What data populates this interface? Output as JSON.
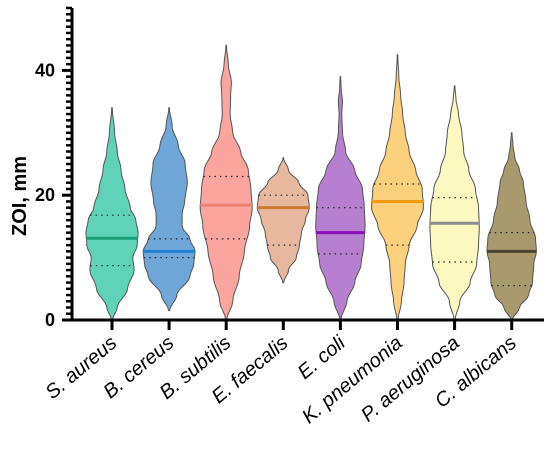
{
  "chart_data": {
    "type": "violin",
    "ylabel": "ZOI, mm",
    "ylim": [
      0,
      50
    ],
    "yticks": [
      0,
      20,
      40
    ],
    "minor_tick_step": 1,
    "categories": [
      "S. aureus",
      "B. cereus",
      "B. subtilis",
      "E. faecalis",
      "E. coli",
      "K. pneumonia",
      "P. aeruginosa",
      "C. albicans"
    ],
    "series": [
      {
        "color": "#5fd3b8",
        "median_color": "#1a9e75",
        "min": 0,
        "max": 34,
        "q1": 8.7,
        "median": 13.1,
        "q3": 16.8,
        "density": [
          [
            0,
            0.02
          ],
          [
            2,
            0.2
          ],
          [
            5,
            0.6
          ],
          [
            8,
            0.85
          ],
          [
            10,
            0.8
          ],
          [
            12,
            0.97
          ],
          [
            14,
            1.0
          ],
          [
            16,
            0.92
          ],
          [
            18,
            0.7
          ],
          [
            21,
            0.5
          ],
          [
            24,
            0.35
          ],
          [
            27,
            0.2
          ],
          [
            30,
            0.1
          ],
          [
            34,
            0.01
          ]
        ]
      },
      {
        "color": "#6fa7d8",
        "median_color": "#1f7fd0",
        "min": 1.5,
        "max": 34,
        "q1": 10.0,
        "median": 11.0,
        "q3": 13.0,
        "density": [
          [
            1.5,
            0.02
          ],
          [
            4,
            0.3
          ],
          [
            7,
            0.8
          ],
          [
            9,
            0.95
          ],
          [
            11,
            1.0
          ],
          [
            13,
            0.8
          ],
          [
            15,
            0.5
          ],
          [
            17,
            0.5
          ],
          [
            19,
            0.6
          ],
          [
            22,
            0.7
          ],
          [
            25,
            0.62
          ],
          [
            28,
            0.35
          ],
          [
            31,
            0.12
          ],
          [
            34,
            0.01
          ]
        ]
      },
      {
        "color": "#fca59e",
        "median_color": "#f08070",
        "min": 0,
        "max": 44,
        "q1": 13.0,
        "median": 18.4,
        "q3": 23.0,
        "density": [
          [
            0,
            0.02
          ],
          [
            3,
            0.25
          ],
          [
            7,
            0.5
          ],
          [
            11,
            0.7
          ],
          [
            15,
            0.9
          ],
          [
            18,
            1.0
          ],
          [
            21,
            0.95
          ],
          [
            24,
            0.85
          ],
          [
            27,
            0.55
          ],
          [
            30,
            0.25
          ],
          [
            33,
            0.15
          ],
          [
            36,
            0.17
          ],
          [
            38,
            0.2
          ],
          [
            41,
            0.08
          ],
          [
            44,
            0.01
          ]
        ]
      },
      {
        "color": "#e8b89e",
        "median_color": "#c97a30",
        "min": 6,
        "max": 26,
        "q1": 12.0,
        "median": 18.0,
        "q3": 20.0,
        "density": [
          [
            6,
            0.02
          ],
          [
            8,
            0.2
          ],
          [
            10,
            0.5
          ],
          [
            12,
            0.62
          ],
          [
            14,
            0.7
          ],
          [
            16,
            0.85
          ],
          [
            18,
            1.0
          ],
          [
            20,
            0.95
          ],
          [
            22,
            0.6
          ],
          [
            24,
            0.2
          ],
          [
            26,
            0.01
          ]
        ]
      },
      {
        "color": "#b67fd0",
        "median_color": "#8b10b8",
        "min": 0,
        "max": 39,
        "q1": 10.6,
        "median": 14.0,
        "q3": 18.0,
        "density": [
          [
            0,
            0.02
          ],
          [
            3,
            0.25
          ],
          [
            6,
            0.55
          ],
          [
            9,
            0.8
          ],
          [
            12,
            0.9
          ],
          [
            15,
            0.95
          ],
          [
            18,
            0.92
          ],
          [
            21,
            0.85
          ],
          [
            24,
            0.55
          ],
          [
            27,
            0.2
          ],
          [
            30,
            0.08
          ],
          [
            33,
            0.05
          ],
          [
            35,
            0.08
          ],
          [
            37,
            0.03
          ],
          [
            39,
            0.01
          ]
        ]
      },
      {
        "color": "#fdd07c",
        "median_color": "#f39a10",
        "min": 0,
        "max": 42.5,
        "q1": 12.0,
        "median": 19.0,
        "q3": 21.8,
        "density": [
          [
            0,
            0.02
          ],
          [
            3,
            0.15
          ],
          [
            6,
            0.25
          ],
          [
            9,
            0.3
          ],
          [
            12,
            0.45
          ],
          [
            15,
            0.75
          ],
          [
            18,
            1.0
          ],
          [
            21,
            0.95
          ],
          [
            24,
            0.7
          ],
          [
            27,
            0.45
          ],
          [
            30,
            0.3
          ],
          [
            33,
            0.2
          ],
          [
            36,
            0.12
          ],
          [
            39,
            0.05
          ],
          [
            42.5,
            0.01
          ]
        ]
      },
      {
        "color": "#fbf8c0",
        "median_color": "#8c8c8c",
        "min": 0,
        "max": 37.5,
        "q1": 9.3,
        "median": 15.5,
        "q3": 19.6,
        "density": [
          [
            0,
            0.02
          ],
          [
            3,
            0.2
          ],
          [
            6,
            0.6
          ],
          [
            9,
            0.85
          ],
          [
            12,
            0.92
          ],
          [
            15,
            0.95
          ],
          [
            18,
            0.92
          ],
          [
            21,
            0.8
          ],
          [
            24,
            0.55
          ],
          [
            27,
            0.35
          ],
          [
            30,
            0.28
          ],
          [
            33,
            0.15
          ],
          [
            35.5,
            0.05
          ],
          [
            37.5,
            0.01
          ]
        ]
      },
      {
        "color": "#a89a6c",
        "median_color": "#4d4530",
        "min": 0,
        "max": 30,
        "q1": 5.5,
        "median": 11.0,
        "q3": 14.0,
        "density": [
          [
            0,
            0.02
          ],
          [
            2,
            0.3
          ],
          [
            4,
            0.65
          ],
          [
            6,
            0.8
          ],
          [
            9,
            0.85
          ],
          [
            11,
            0.95
          ],
          [
            13,
            0.92
          ],
          [
            16,
            0.7
          ],
          [
            19,
            0.55
          ],
          [
            22,
            0.45
          ],
          [
            24,
            0.3
          ],
          [
            26,
            0.12
          ],
          [
            28,
            0.05
          ],
          [
            30,
            0.01
          ]
        ]
      }
    ]
  }
}
